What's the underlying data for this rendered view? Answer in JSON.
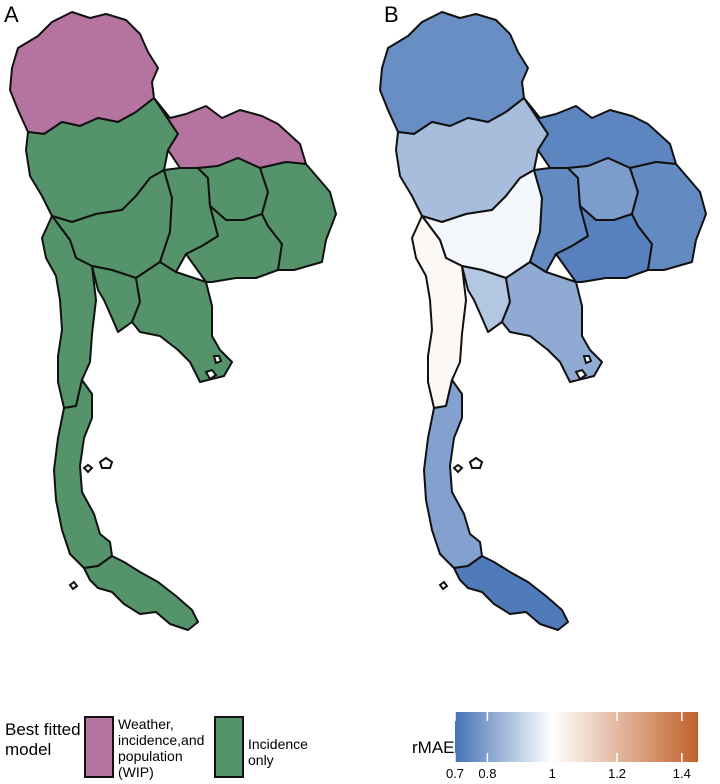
{
  "panels": {
    "a": {
      "label": "A"
    },
    "b": {
      "label": "B"
    }
  },
  "legend_a": {
    "title": "Best fitted model",
    "items": [
      {
        "label": "Weather, incidence,and population (WIP)",
        "color": "#b5749f"
      },
      {
        "label": "Incidence only",
        "color": "#55946b"
      }
    ]
  },
  "legend_b": {
    "title": "rMAE",
    "scale": {
      "min": 0.7,
      "max": 1.45,
      "mid": 1.0,
      "low_color": "#4472b5",
      "mid_color": "#ffffff",
      "high_color": "#c0622a"
    },
    "ticks": [
      {
        "value": 0.7,
        "label": "0.7"
      },
      {
        "value": 0.8,
        "label": "0.8"
      },
      {
        "value": 1.0,
        "label": "1"
      },
      {
        "value": 1.2,
        "label": "1.2"
      },
      {
        "value": 1.4,
        "label": "1.4"
      }
    ]
  },
  "regions": [
    {
      "id": "upper-north",
      "best_model": "WIP",
      "rmae": 0.76
    },
    {
      "id": "lower-north",
      "best_model": "Incidence",
      "rmae": 0.86
    },
    {
      "id": "central-north",
      "best_model": "Incidence",
      "rmae": 0.98
    },
    {
      "id": "west",
      "best_model": "Incidence",
      "rmae": 1.02
    },
    {
      "id": "central",
      "best_model": "Incidence",
      "rmae": 0.88
    },
    {
      "id": "east",
      "best_model": "Incidence",
      "rmae": 0.82
    },
    {
      "id": "upper-northeast",
      "best_model": "WIP",
      "rmae": 0.74
    },
    {
      "id": "central-northeast",
      "best_model": "Incidence",
      "rmae": 0.75
    },
    {
      "id": "northeast-inner",
      "best_model": "Incidence",
      "rmae": 0.79
    },
    {
      "id": "lower-northeast",
      "best_model": "Incidence",
      "rmae": 0.73
    },
    {
      "id": "far-northeast",
      "best_model": "Incidence",
      "rmae": 0.75
    },
    {
      "id": "upper-south",
      "best_model": "Incidence",
      "rmae": 0.8
    },
    {
      "id": "lower-south",
      "best_model": "Incidence",
      "rmae": 0.72
    }
  ]
}
